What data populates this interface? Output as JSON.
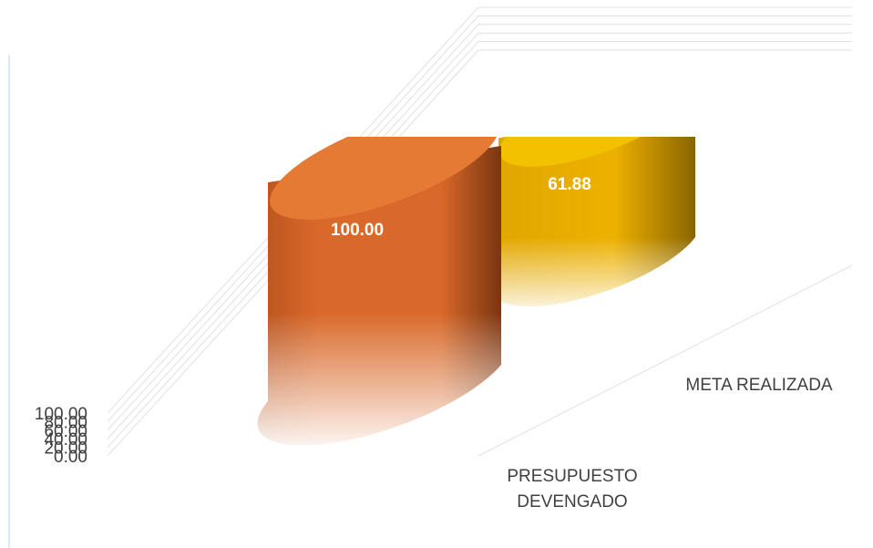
{
  "chart_data": {
    "type": "bar",
    "shape": "cylinder-3d",
    "categories": [
      "PRESUPUESTO DEVENGADO",
      "META REALIZADA"
    ],
    "values": [
      100.0,
      61.88
    ],
    "data_labels": [
      "100.00",
      "61.88"
    ],
    "y_ticks": [
      "0.00",
      "20.00",
      "40.00",
      "60.00",
      "80.00",
      "100.00"
    ],
    "ylim": [
      0,
      100
    ],
    "grid": true,
    "colors": {
      "bar1": "#D9692A",
      "bar1_top": "#E57A35",
      "bar2": "#EDB100",
      "bar2_top": "#F2C200",
      "gridline": "#D9D9D9",
      "axis_text": "#404040",
      "label_text": "#FFFFFF",
      "frame": "#BDD7EE"
    }
  }
}
